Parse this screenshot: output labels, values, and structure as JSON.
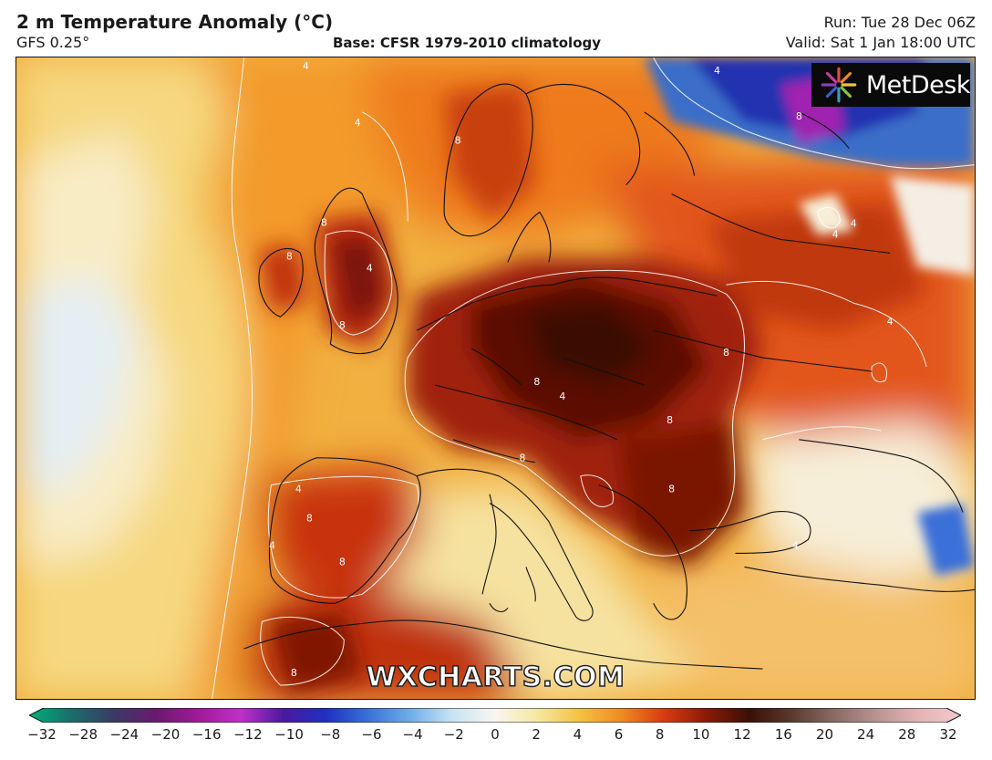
{
  "header": {
    "title": "2 m Temperature Anomaly (°C)",
    "model": "GFS 0.25°",
    "base": "Base: CFSR 1979-2010 climatology",
    "run": "Run: Tue 28 Dec 06Z",
    "valid": "Valid: Sat 1 Jan 18:00 UTC"
  },
  "logo": {
    "text": "MetDesk"
  },
  "watermark": {
    "text": "WXCHARTS.COM"
  },
  "contour_labels": [
    {
      "value": "4"
    },
    {
      "value": "4"
    },
    {
      "value": "8"
    },
    {
      "value": "8"
    },
    {
      "value": "4"
    },
    {
      "value": "8"
    },
    {
      "value": "8"
    },
    {
      "value": "8"
    },
    {
      "value": "4"
    },
    {
      "value": "8"
    },
    {
      "value": "8"
    },
    {
      "value": "8"
    },
    {
      "value": "4"
    },
    {
      "value": "8"
    },
    {
      "value": "4"
    },
    {
      "value": "4"
    },
    {
      "value": "4"
    },
    {
      "value": "8"
    },
    {
      "value": "8"
    },
    {
      "value": "4"
    },
    {
      "value": "8"
    },
    {
      "value": "4"
    },
    {
      "value": "4"
    },
    {
      "value": "8"
    }
  ],
  "colorbar": {
    "min": -32,
    "max": 32,
    "ticks": [
      "−32",
      "−28",
      "−24",
      "−20",
      "−16",
      "−12",
      "−10",
      "−8",
      "−6",
      "−4",
      "−2",
      "0",
      "2",
      "4",
      "6",
      "8",
      "10",
      "12",
      "16",
      "20",
      "24",
      "28",
      "32"
    ],
    "colors": [
      "#00b07a",
      "#1a6e6a",
      "#3a3a66",
      "#6a1a6e",
      "#a01a9a",
      "#c030c8",
      "#4a1aa0",
      "#2030c0",
      "#3a70d8",
      "#70aee8",
      "#c8e4f4",
      "#f8f6f0",
      "#f6e8a0",
      "#f4c040",
      "#f08a20",
      "#d83a10",
      "#8a1a08",
      "#3a1006",
      "#5a3a30",
      "#8a6a64",
      "#b89490",
      "#e4b4b4",
      "#f4c8d0"
    ]
  }
}
